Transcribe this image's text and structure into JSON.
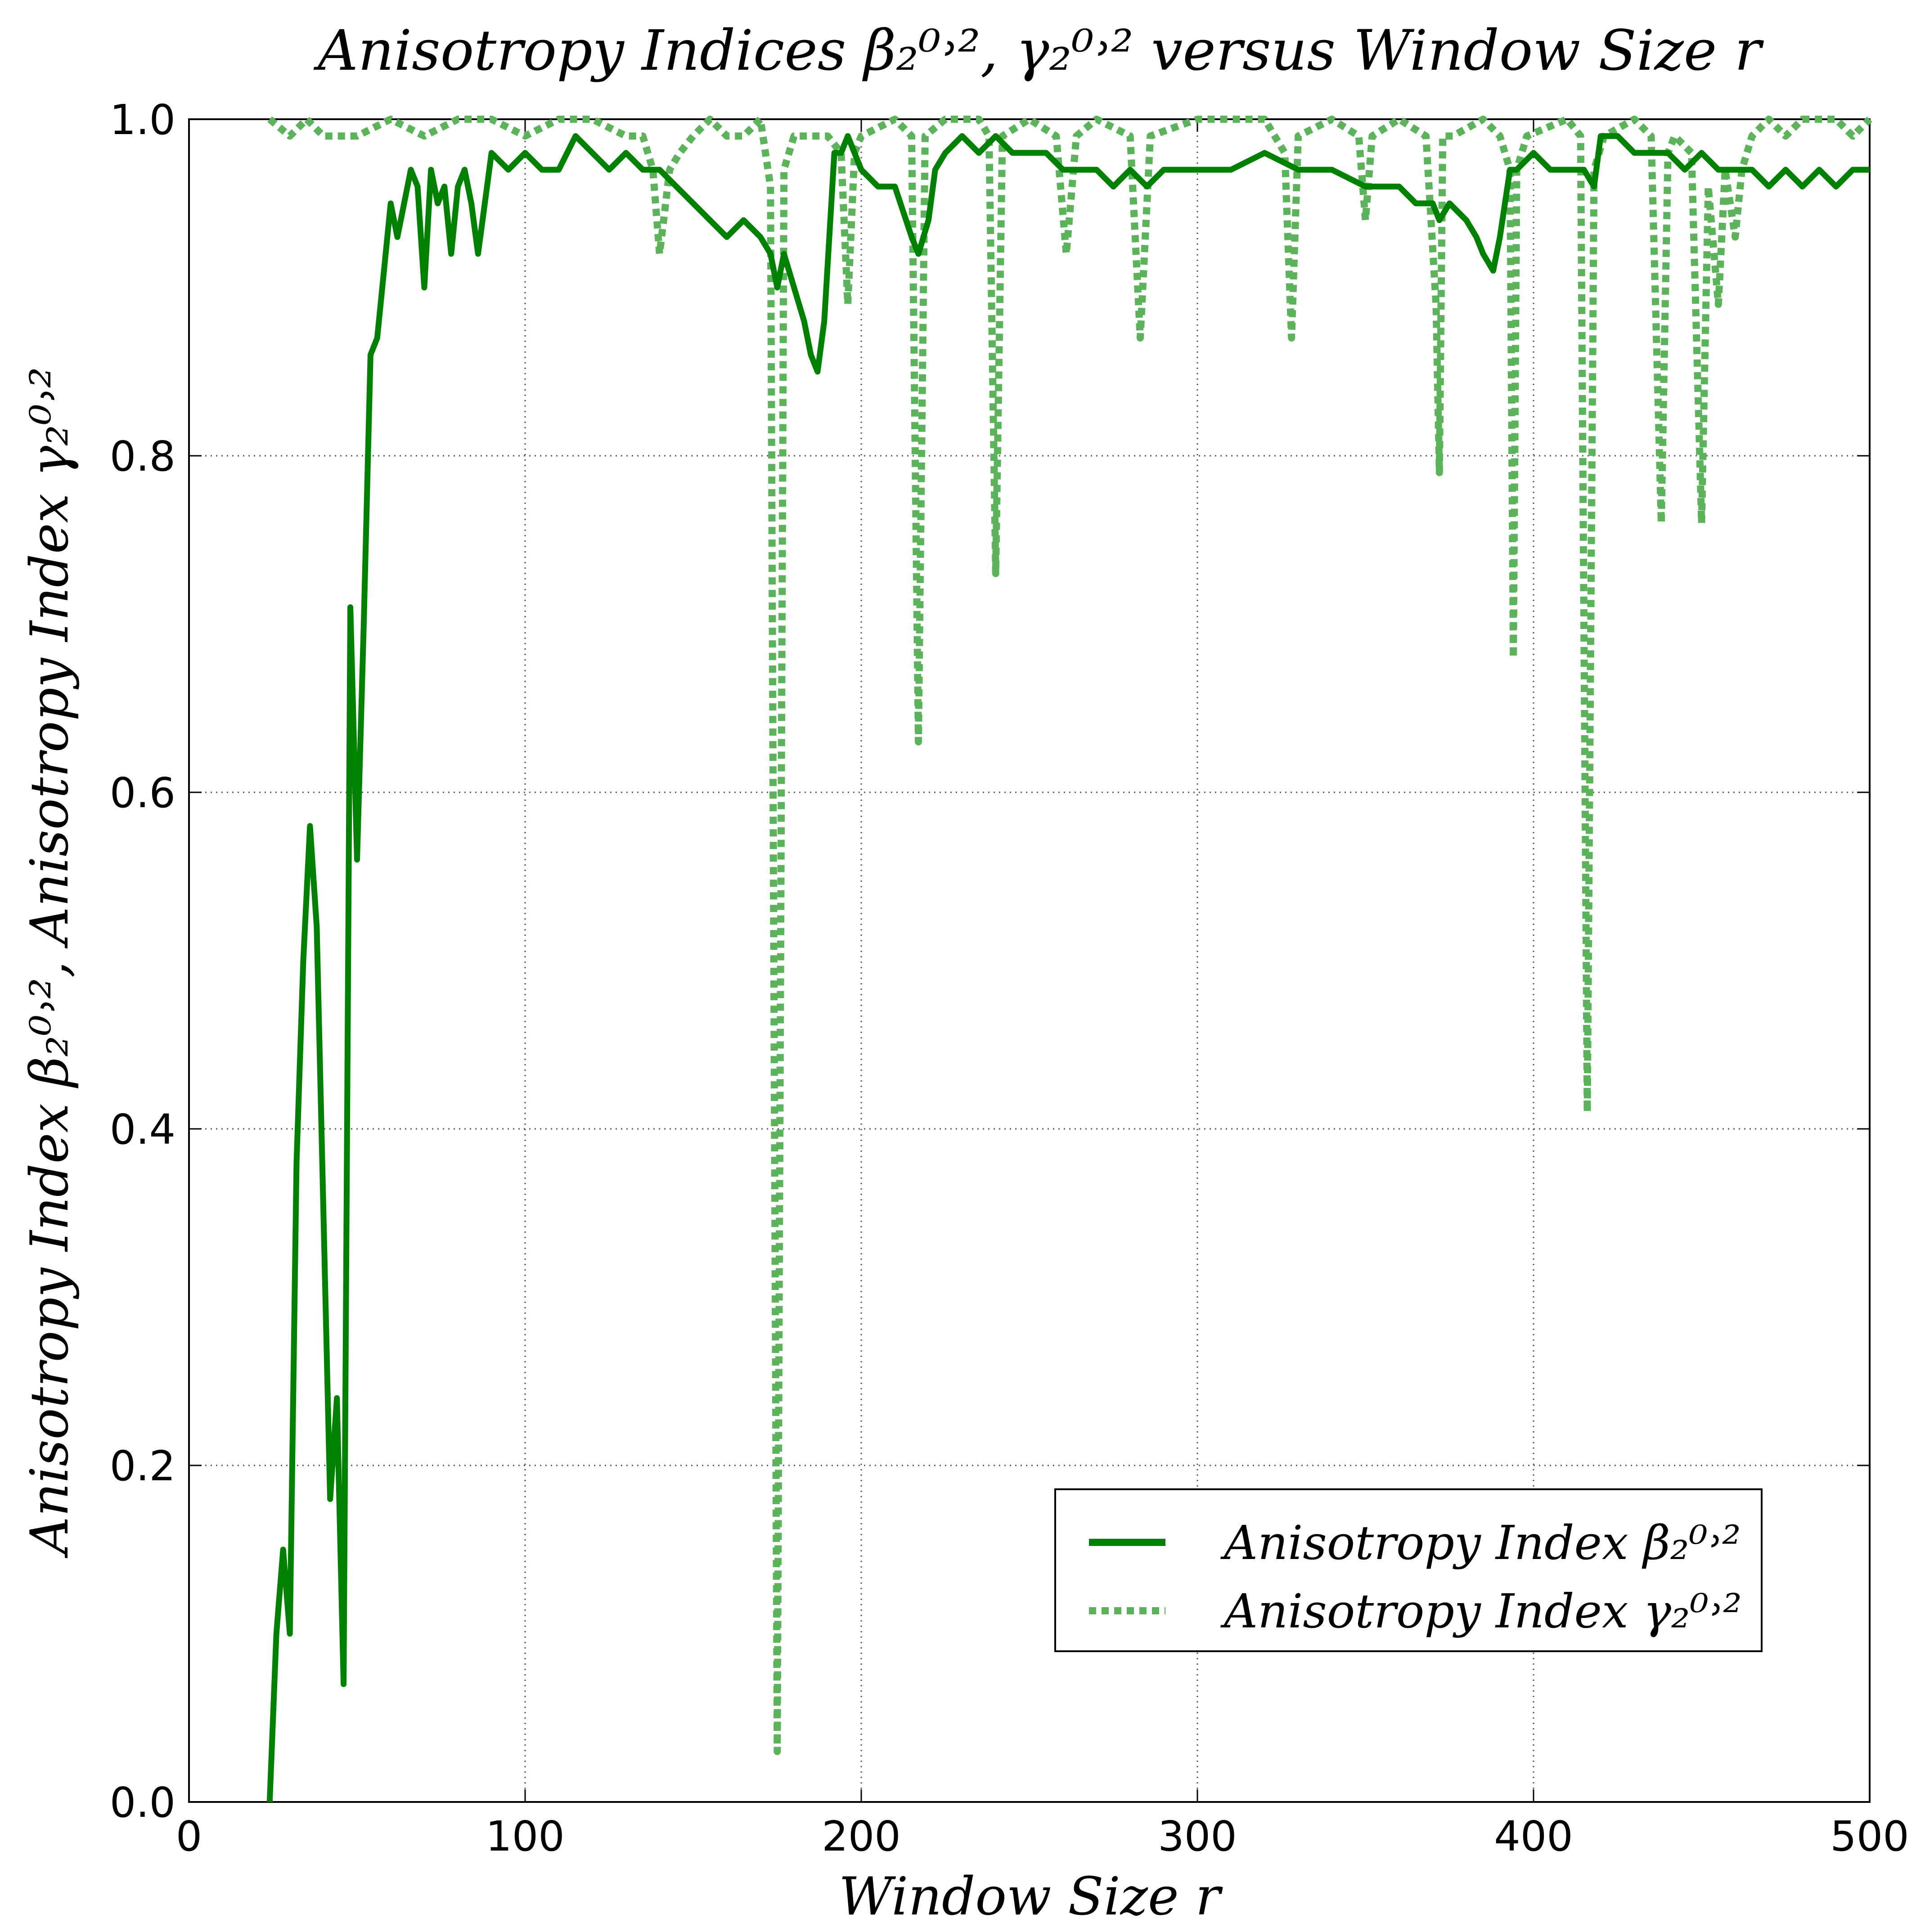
{
  "chart_data": {
    "type": "line",
    "title": "Anisotropy Indices β₂⁰˒², γ₂⁰˒² versus Window Size r",
    "xlabel": "Window Size r",
    "ylabel": "Anisotropy Index β₂⁰˒²,  Anisotropy Index γ₂⁰˒²",
    "xlim": [
      0,
      500
    ],
    "ylim": [
      0.0,
      1.0
    ],
    "xticks": [
      "0",
      "100",
      "200",
      "300",
      "400",
      "500"
    ],
    "yticks": [
      "0.0",
      "0.2",
      "0.4",
      "0.6",
      "0.8",
      "1.0"
    ],
    "grid": true,
    "legend_position": "lower-right",
    "series": [
      {
        "name": "Anisotropy Index β₂⁰˒²",
        "color": "#008000",
        "style": "solid",
        "x": [
          24,
          26,
          28,
          30,
          32,
          34,
          36,
          38,
          40,
          42,
          44,
          46,
          48,
          50,
          52,
          54,
          56,
          58,
          60,
          62,
          64,
          66,
          68,
          70,
          72,
          74,
          76,
          78,
          80,
          82,
          84,
          86,
          88,
          90,
          95,
          100,
          105,
          110,
          115,
          120,
          125,
          130,
          135,
          140,
          145,
          150,
          155,
          160,
          165,
          170,
          173,
          175,
          177,
          180,
          183,
          185,
          187,
          189,
          192,
          194,
          196,
          200,
          205,
          210,
          215,
          217,
          220,
          222,
          225,
          230,
          235,
          240,
          245,
          250,
          255,
          260,
          265,
          270,
          275,
          280,
          285,
          290,
          295,
          300,
          310,
          320,
          330,
          340,
          350,
          355,
          360,
          365,
          370,
          372,
          375,
          380,
          383,
          385,
          388,
          390,
          393,
          395,
          400,
          405,
          410,
          415,
          418,
          420,
          425,
          430,
          435,
          440,
          445,
          450,
          455,
          460,
          465,
          470,
          475,
          480,
          485,
          490,
          495,
          500
        ],
        "values": [
          0.0,
          0.1,
          0.15,
          0.1,
          0.38,
          0.5,
          0.58,
          0.52,
          0.35,
          0.18,
          0.24,
          0.07,
          0.71,
          0.56,
          0.7,
          0.86,
          0.87,
          0.91,
          0.95,
          0.93,
          0.95,
          0.97,
          0.96,
          0.9,
          0.97,
          0.95,
          0.96,
          0.92,
          0.96,
          0.97,
          0.95,
          0.92,
          0.95,
          0.98,
          0.97,
          0.98,
          0.97,
          0.97,
          0.99,
          0.98,
          0.97,
          0.98,
          0.97,
          0.97,
          0.96,
          0.95,
          0.94,
          0.93,
          0.94,
          0.93,
          0.92,
          0.9,
          0.92,
          0.9,
          0.88,
          0.86,
          0.85,
          0.88,
          0.98,
          0.98,
          0.99,
          0.97,
          0.96,
          0.96,
          0.93,
          0.92,
          0.94,
          0.97,
          0.98,
          0.99,
          0.98,
          0.99,
          0.98,
          0.98,
          0.98,
          0.97,
          0.97,
          0.97,
          0.96,
          0.97,
          0.96,
          0.97,
          0.97,
          0.97,
          0.97,
          0.98,
          0.97,
          0.97,
          0.96,
          0.96,
          0.96,
          0.95,
          0.95,
          0.94,
          0.95,
          0.94,
          0.93,
          0.92,
          0.91,
          0.93,
          0.97,
          0.97,
          0.98,
          0.97,
          0.97,
          0.97,
          0.96,
          0.99,
          0.99,
          0.98,
          0.98,
          0.98,
          0.97,
          0.98,
          0.97,
          0.97,
          0.97,
          0.96,
          0.97,
          0.96,
          0.97,
          0.96,
          0.97,
          0.97
        ]
      },
      {
        "name": "Anisotropy Index γ₂⁰˒²",
        "color": "#5cb35c",
        "style": "dotted",
        "x": [
          24,
          30,
          35,
          40,
          50,
          60,
          70,
          80,
          90,
          100,
          110,
          120,
          130,
          135,
          138,
          140,
          143,
          146,
          150,
          155,
          160,
          165,
          170,
          173,
          175,
          177,
          180,
          190,
          194,
          196,
          198,
          200,
          210,
          215,
          217,
          219,
          225,
          235,
          238,
          240,
          242,
          250,
          258,
          261,
          264,
          270,
          280,
          283,
          286,
          300,
          320,
          326,
          328,
          330,
          340,
          348,
          350,
          352,
          360,
          368,
          371,
          372,
          373,
          376,
          385,
          390,
          393,
          394,
          395,
          398,
          410,
          414,
          416,
          418,
          421,
          430,
          435,
          438,
          440,
          442,
          447,
          450,
          452,
          455,
          457,
          460,
          462,
          465,
          470,
          475,
          480,
          490,
          495,
          500
        ],
        "values": [
          1.0,
          0.99,
          1.0,
          0.99,
          0.99,
          1.0,
          0.99,
          1.0,
          1.0,
          0.99,
          1.0,
          1.0,
          0.99,
          0.99,
          0.97,
          0.92,
          0.97,
          0.98,
          0.99,
          1.0,
          0.99,
          0.99,
          1.0,
          0.96,
          0.03,
          0.97,
          0.99,
          0.99,
          0.98,
          0.89,
          0.98,
          0.99,
          1.0,
          0.99,
          0.63,
          0.99,
          1.0,
          1.0,
          0.99,
          0.73,
          0.99,
          1.0,
          0.99,
          0.92,
          0.99,
          1.0,
          0.99,
          0.87,
          0.99,
          1.0,
          1.0,
          0.98,
          0.87,
          0.99,
          1.0,
          0.99,
          0.94,
          0.99,
          1.0,
          0.99,
          0.89,
          0.79,
          0.99,
          0.99,
          1.0,
          0.99,
          0.97,
          0.68,
          0.97,
          0.99,
          1.0,
          0.99,
          0.41,
          0.97,
          0.99,
          1.0,
          0.99,
          0.76,
          0.98,
          0.99,
          0.98,
          0.76,
          0.96,
          0.89,
          0.97,
          0.93,
          0.97,
          0.99,
          1.0,
          0.99,
          1.0,
          1.0,
          0.99,
          1.0
        ]
      }
    ]
  }
}
